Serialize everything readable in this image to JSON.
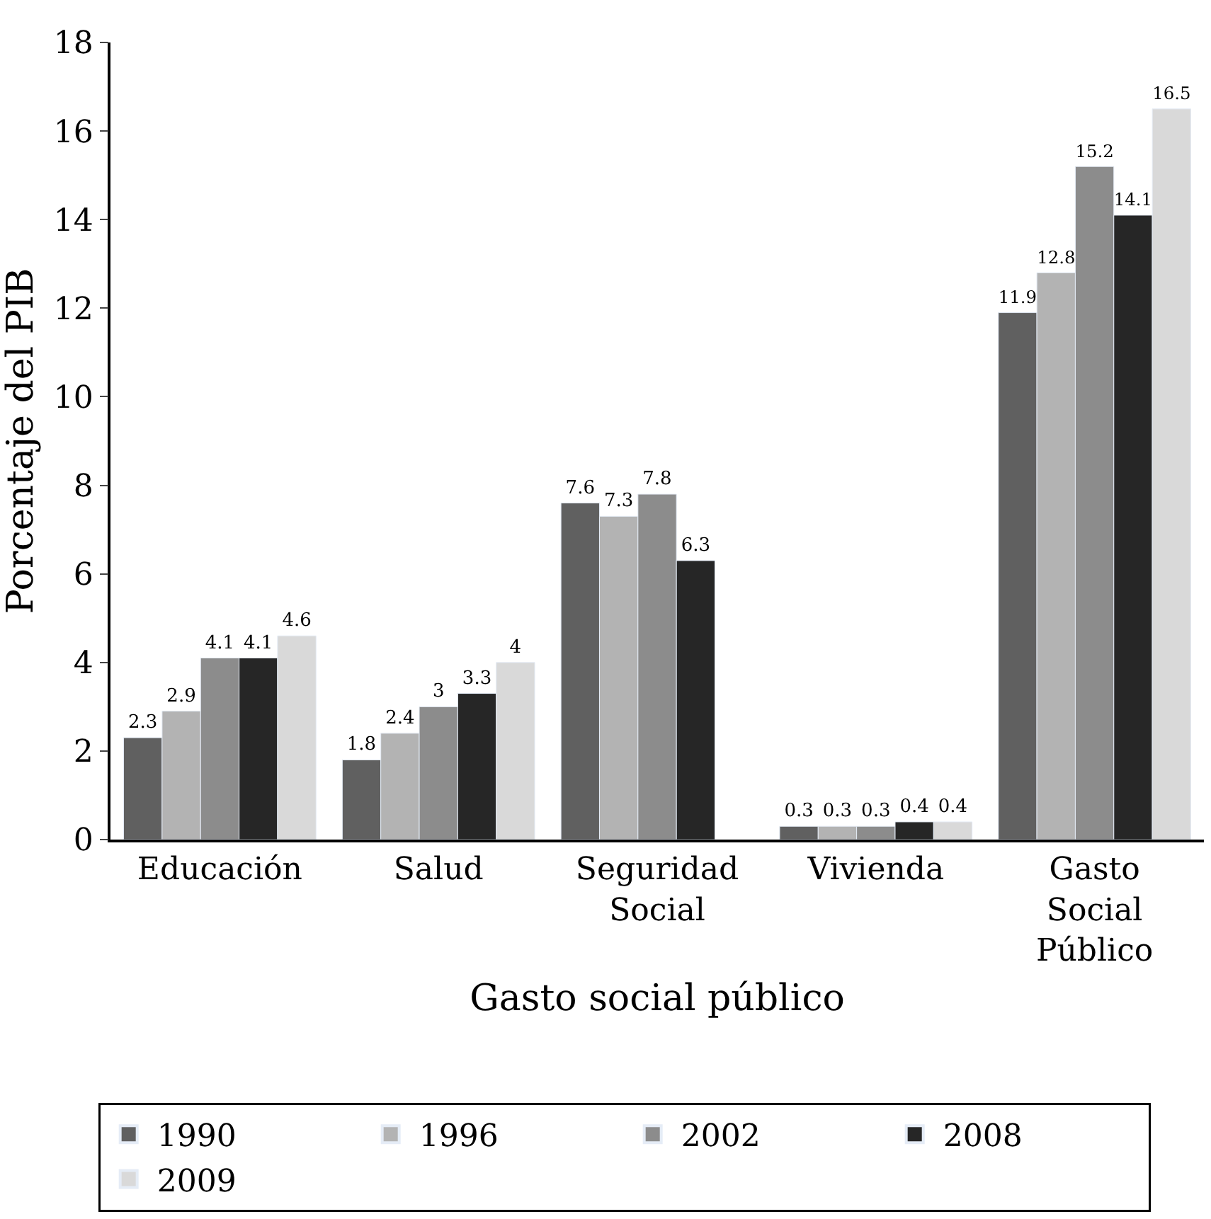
{
  "chart_data": {
    "type": "bar",
    "xlabel": "Gasto social público",
    "ylabel": "Porcentaje del PIB",
    "categories": [
      "Educación",
      "Salud",
      "Seguridad Social",
      "Vivienda",
      "Gasto Social Público"
    ],
    "series": [
      {
        "name": "1990",
        "color": "#606060",
        "values": [
          2.3,
          1.8,
          7.6,
          0.3,
          11.9
        ]
      },
      {
        "name": "1996",
        "color": "#b3b3b3",
        "values": [
          2.9,
          2.4,
          7.3,
          0.3,
          12.8
        ]
      },
      {
        "name": "2002",
        "color": "#8c8c8c",
        "values": [
          4.1,
          3,
          7.8,
          0.3,
          15.2
        ]
      },
      {
        "name": "2008",
        "color": "#262626",
        "values": [
          4.1,
          3.3,
          6.3,
          0.4,
          14.1
        ]
      },
      {
        "name": "2009",
        "color": "#d9d9d9",
        "values": [
          4.6,
          4,
          null,
          0.4,
          16.5
        ]
      }
    ],
    "ylim": [
      0,
      18
    ],
    "yticks": [
      0,
      2,
      4,
      6,
      8,
      10,
      12,
      14,
      16,
      18
    ],
    "grid": false,
    "legend": "bottom",
    "data_labels": true
  }
}
